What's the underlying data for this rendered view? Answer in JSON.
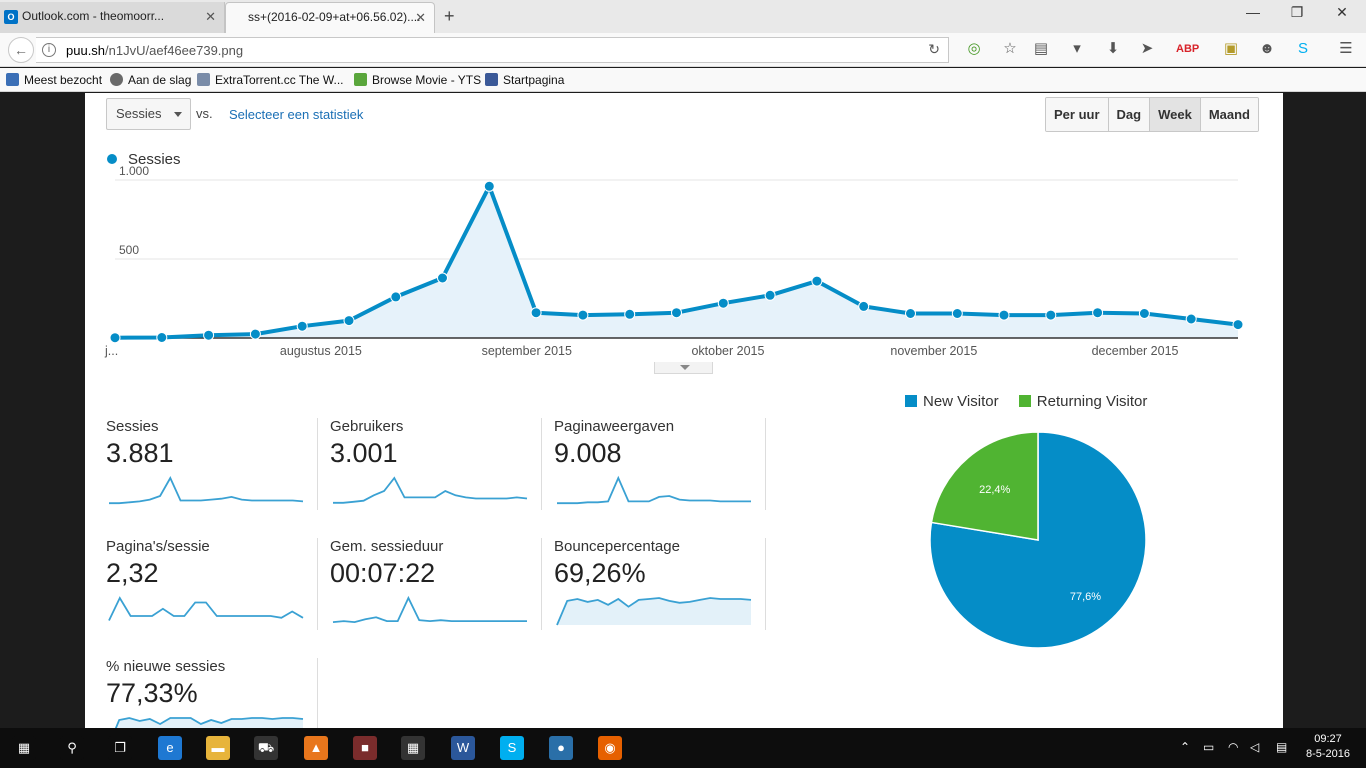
{
  "browser": {
    "tabs": [
      {
        "label": "Outlook.com - theomoorr...",
        "active": false,
        "favicon": "O"
      },
      {
        "label": "ss+(2016-02-09+at+06.56.02)....",
        "active": true
      }
    ],
    "url_host": "puu.sh",
    "url_path": "/n1JvU/aef46ee739.png",
    "bookmarks": [
      {
        "label": "Meest bezocht",
        "color": "#3b6fb6"
      },
      {
        "label": "Aan de slag",
        "color": "#6a6a6a"
      },
      {
        "label": "ExtraTorrent.cc The W...",
        "color": "#7a8ca8"
      },
      {
        "label": "Browse Movie - YTS",
        "color": "#5aa63c"
      },
      {
        "label": "Startpagina",
        "color": "#3b5998"
      }
    ]
  },
  "analytics": {
    "metric_select": "Sessies",
    "vs_label": "vs.",
    "select_stat_link": "Selecteer een statistiek",
    "periods": [
      {
        "label": "Per uur",
        "selected": false
      },
      {
        "label": "Dag",
        "selected": false
      },
      {
        "label": "Week",
        "selected": true
      },
      {
        "label": "Maand",
        "selected": false
      }
    ],
    "series_legend": "Sessies",
    "summary_cards": [
      {
        "label": "Sessies",
        "value": "3.881"
      },
      {
        "label": "Gebruikers",
        "value": "3.001"
      },
      {
        "label": "Paginaweergaven",
        "value": "9.008"
      },
      {
        "label": "Pagina's/sessie",
        "value": "2,32"
      },
      {
        "label": "Gem. sessieduur",
        "value": "00:07:22"
      },
      {
        "label": "Bouncepercentage",
        "value": "69,26%"
      },
      {
        "label": "% nieuwe sessies",
        "value": "77,33%"
      }
    ]
  },
  "chart_data": [
    {
      "type": "area",
      "series": [
        {
          "name": "Sessies",
          "color": "#058dc7",
          "values": [
            2,
            3,
            18,
            25,
            75,
            110,
            260,
            380,
            960,
            160,
            145,
            150,
            160,
            220,
            270,
            360,
            200,
            155,
            155,
            145,
            145,
            160,
            155,
            120,
            85
          ]
        }
      ],
      "yticks": [
        {
          "value": 500,
          "label": "500"
        },
        {
          "value": 1000,
          "label": "1.000"
        }
      ],
      "ylim": [
        0,
        1000
      ],
      "xticks": [
        {
          "index": 0,
          "label": "j..."
        },
        {
          "index": 4.4,
          "label": "augustus 2015"
        },
        {
          "index": 8.8,
          "label": "september 2015"
        },
        {
          "index": 13.1,
          "label": "oktober 2015"
        },
        {
          "index": 17.5,
          "label": "november 2015"
        },
        {
          "index": 21.8,
          "label": "december 2015"
        }
      ],
      "grid": true
    },
    {
      "type": "pie",
      "slices": [
        {
          "label": "New Visitor",
          "value": 77.6,
          "text": "77,6%",
          "color": "#058dc7"
        },
        {
          "label": "Returning Visitor",
          "value": 22.4,
          "text": "22,4%",
          "color": "#50b432"
        }
      ],
      "legend": "top"
    }
  ],
  "sparklines": [
    [
      2,
      2,
      3,
      4,
      6,
      10,
      30,
      5,
      5,
      5,
      6,
      7,
      9,
      6,
      5,
      5,
      5,
      5,
      5,
      4
    ],
    [
      2,
      2,
      3,
      4,
      9,
      13,
      25,
      7,
      7,
      7,
      7,
      13,
      9,
      7,
      6,
      6,
      6,
      6,
      7,
      6
    ],
    [
      2,
      2,
      2,
      3,
      3,
      4,
      30,
      4,
      4,
      4,
      9,
      10,
      6,
      5,
      5,
      5,
      4,
      4,
      4,
      4
    ],
    [
      5,
      30,
      10,
      10,
      10,
      18,
      10,
      10,
      25,
      25,
      10,
      10,
      10,
      10,
      10,
      10,
      8,
      15,
      8
    ],
    [
      3,
      4,
      3,
      6,
      8,
      4,
      4,
      28,
      5,
      4,
      5,
      4,
      4,
      4,
      4,
      4,
      4,
      4,
      4
    ],
    [
      0,
      25,
      27,
      24,
      26,
      21,
      27,
      19,
      26,
      27,
      28,
      25,
      23,
      24,
      26,
      28,
      27,
      27,
      27,
      26
    ],
    [
      0,
      25,
      27,
      24,
      26,
      21,
      27,
      27,
      27,
      21,
      25,
      22,
      26,
      26,
      27,
      27,
      26,
      27,
      27,
      26
    ]
  ],
  "taskbar": {
    "time": "09:27",
    "date": "8-5-2016",
    "apps": [
      {
        "name": "start-icon",
        "color": "#0d0d0d",
        "glyph": "▦"
      },
      {
        "name": "search-icon",
        "color": "#0d0d0d",
        "glyph": "⚲"
      },
      {
        "name": "task-view-icon",
        "color": "#0d0d0d",
        "glyph": "❐"
      },
      {
        "name": "edge-icon",
        "color": "#1e78d2",
        "glyph": "e"
      },
      {
        "name": "file-explorer-icon",
        "color": "#e7b43b",
        "glyph": "▬"
      },
      {
        "name": "store-icon",
        "color": "#333333",
        "glyph": "⛟"
      },
      {
        "name": "vlc-icon",
        "color": "#e8761c",
        "glyph": "▲"
      },
      {
        "name": "app-icon",
        "color": "#7a2c2c",
        "glyph": "■"
      },
      {
        "name": "calculator-icon",
        "color": "#333333",
        "glyph": "▦"
      },
      {
        "name": "word-icon",
        "color": "#2b579a",
        "glyph": "W"
      },
      {
        "name": "skype-icon",
        "color": "#00aff0",
        "glyph": "S"
      },
      {
        "name": "app-circle-icon",
        "color": "#2a6fa8",
        "glyph": "●"
      },
      {
        "name": "firefox-icon",
        "color": "#e66000",
        "glyph": "◉"
      }
    ]
  }
}
